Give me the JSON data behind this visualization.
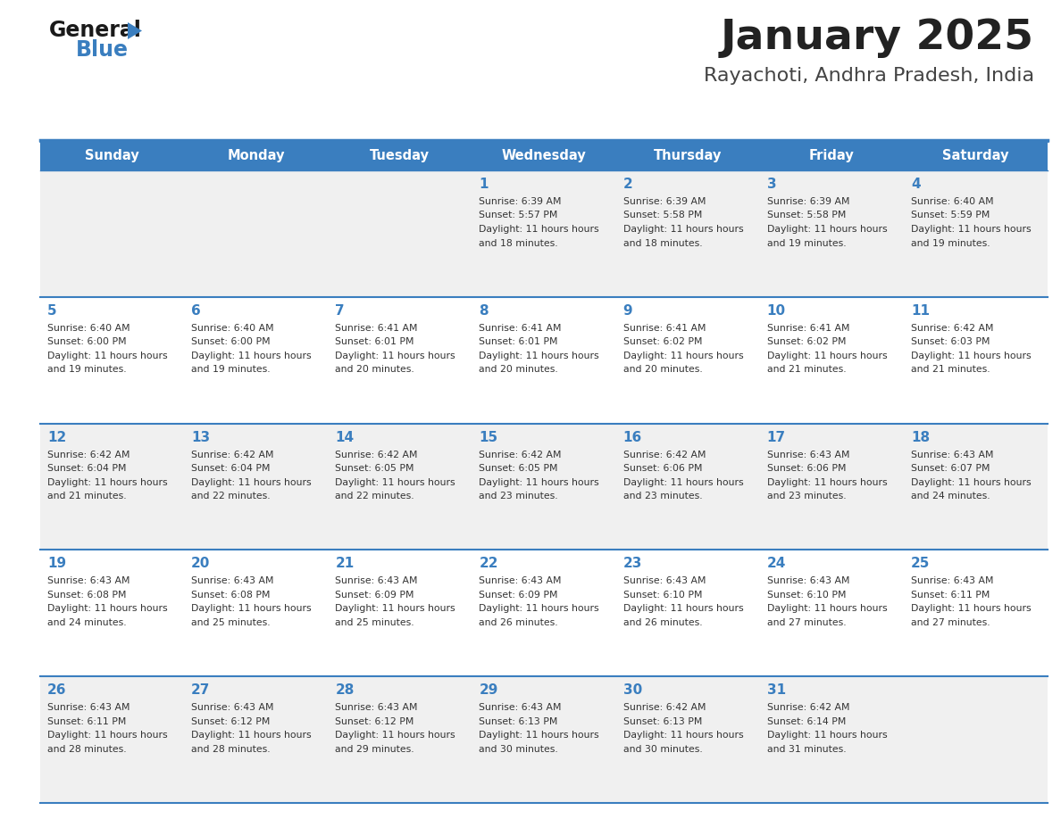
{
  "title": "January 2025",
  "subtitle": "Rayachoti, Andhra Pradesh, India",
  "header_bg": "#3a7ebf",
  "header_text": "#ffffff",
  "row_bg_odd": "#f0f0f0",
  "row_bg_even": "#ffffff",
  "day_headers": [
    "Sunday",
    "Monday",
    "Tuesday",
    "Wednesday",
    "Thursday",
    "Friday",
    "Saturday"
  ],
  "title_color": "#222222",
  "subtitle_color": "#444444",
  "day_number_color": "#3a7ebf",
  "cell_text_color": "#333333",
  "divider_color": "#3a7ebf",
  "logo_general_color": "#1a1a1a",
  "logo_blue_color": "#3a7ebf",
  "logo_triangle_color": "#3a7ebf",
  "calendar_data": [
    [
      {
        "day": "",
        "sunrise": "",
        "sunset": "",
        "daylight": ""
      },
      {
        "day": "",
        "sunrise": "",
        "sunset": "",
        "daylight": ""
      },
      {
        "day": "",
        "sunrise": "",
        "sunset": "",
        "daylight": ""
      },
      {
        "day": "1",
        "sunrise": "6:39 AM",
        "sunset": "5:57 PM",
        "daylight": "11 hours and 18 minutes."
      },
      {
        "day": "2",
        "sunrise": "6:39 AM",
        "sunset": "5:58 PM",
        "daylight": "11 hours and 18 minutes."
      },
      {
        "day": "3",
        "sunrise": "6:39 AM",
        "sunset": "5:58 PM",
        "daylight": "11 hours and 19 minutes."
      },
      {
        "day": "4",
        "sunrise": "6:40 AM",
        "sunset": "5:59 PM",
        "daylight": "11 hours and 19 minutes."
      }
    ],
    [
      {
        "day": "5",
        "sunrise": "6:40 AM",
        "sunset": "6:00 PM",
        "daylight": "11 hours and 19 minutes."
      },
      {
        "day": "6",
        "sunrise": "6:40 AM",
        "sunset": "6:00 PM",
        "daylight": "11 hours and 19 minutes."
      },
      {
        "day": "7",
        "sunrise": "6:41 AM",
        "sunset": "6:01 PM",
        "daylight": "11 hours and 20 minutes."
      },
      {
        "day": "8",
        "sunrise": "6:41 AM",
        "sunset": "6:01 PM",
        "daylight": "11 hours and 20 minutes."
      },
      {
        "day": "9",
        "sunrise": "6:41 AM",
        "sunset": "6:02 PM",
        "daylight": "11 hours and 20 minutes."
      },
      {
        "day": "10",
        "sunrise": "6:41 AM",
        "sunset": "6:02 PM",
        "daylight": "11 hours and 21 minutes."
      },
      {
        "day": "11",
        "sunrise": "6:42 AM",
        "sunset": "6:03 PM",
        "daylight": "11 hours and 21 minutes."
      }
    ],
    [
      {
        "day": "12",
        "sunrise": "6:42 AM",
        "sunset": "6:04 PM",
        "daylight": "11 hours and 21 minutes."
      },
      {
        "day": "13",
        "sunrise": "6:42 AM",
        "sunset": "6:04 PM",
        "daylight": "11 hours and 22 minutes."
      },
      {
        "day": "14",
        "sunrise": "6:42 AM",
        "sunset": "6:05 PM",
        "daylight": "11 hours and 22 minutes."
      },
      {
        "day": "15",
        "sunrise": "6:42 AM",
        "sunset": "6:05 PM",
        "daylight": "11 hours and 23 minutes."
      },
      {
        "day": "16",
        "sunrise": "6:42 AM",
        "sunset": "6:06 PM",
        "daylight": "11 hours and 23 minutes."
      },
      {
        "day": "17",
        "sunrise": "6:43 AM",
        "sunset": "6:06 PM",
        "daylight": "11 hours and 23 minutes."
      },
      {
        "day": "18",
        "sunrise": "6:43 AM",
        "sunset": "6:07 PM",
        "daylight": "11 hours and 24 minutes."
      }
    ],
    [
      {
        "day": "19",
        "sunrise": "6:43 AM",
        "sunset": "6:08 PM",
        "daylight": "11 hours and 24 minutes."
      },
      {
        "day": "20",
        "sunrise": "6:43 AM",
        "sunset": "6:08 PM",
        "daylight": "11 hours and 25 minutes."
      },
      {
        "day": "21",
        "sunrise": "6:43 AM",
        "sunset": "6:09 PM",
        "daylight": "11 hours and 25 minutes."
      },
      {
        "day": "22",
        "sunrise": "6:43 AM",
        "sunset": "6:09 PM",
        "daylight": "11 hours and 26 minutes."
      },
      {
        "day": "23",
        "sunrise": "6:43 AM",
        "sunset": "6:10 PM",
        "daylight": "11 hours and 26 minutes."
      },
      {
        "day": "24",
        "sunrise": "6:43 AM",
        "sunset": "6:10 PM",
        "daylight": "11 hours and 27 minutes."
      },
      {
        "day": "25",
        "sunrise": "6:43 AM",
        "sunset": "6:11 PM",
        "daylight": "11 hours and 27 minutes."
      }
    ],
    [
      {
        "day": "26",
        "sunrise": "6:43 AM",
        "sunset": "6:11 PM",
        "daylight": "11 hours and 28 minutes."
      },
      {
        "day": "27",
        "sunrise": "6:43 AM",
        "sunset": "6:12 PM",
        "daylight": "11 hours and 28 minutes."
      },
      {
        "day": "28",
        "sunrise": "6:43 AM",
        "sunset": "6:12 PM",
        "daylight": "11 hours and 29 minutes."
      },
      {
        "day": "29",
        "sunrise": "6:43 AM",
        "sunset": "6:13 PM",
        "daylight": "11 hours and 30 minutes."
      },
      {
        "day": "30",
        "sunrise": "6:42 AM",
        "sunset": "6:13 PM",
        "daylight": "11 hours and 30 minutes."
      },
      {
        "day": "31",
        "sunrise": "6:42 AM",
        "sunset": "6:14 PM",
        "daylight": "11 hours and 31 minutes."
      },
      {
        "day": "",
        "sunrise": "",
        "sunset": "",
        "daylight": ""
      }
    ]
  ]
}
